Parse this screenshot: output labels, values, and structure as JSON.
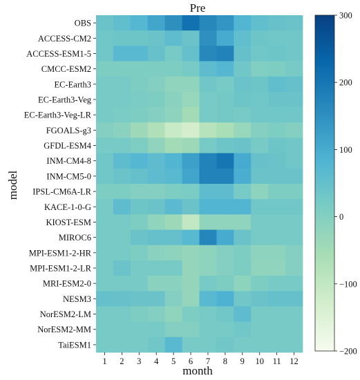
{
  "chart_data": {
    "type": "heatmap",
    "title": "Pre",
    "xlabel": "month",
    "ylabel": "model",
    "x": [
      "1",
      "2",
      "3",
      "4",
      "5",
      "6",
      "7",
      "8",
      "9",
      "10",
      "11",
      "12"
    ],
    "y": [
      "OBS",
      "ACCESS-CM2",
      "ACCESS-ESM1-5",
      "CMCC-ESM2",
      "EC-Earth3",
      "EC-Earth3-Veg",
      "EC-Earth3-Veg-LR",
      "FGOALS-g3",
      "GFDL-ESM4",
      "INM-CM4-8",
      "INM-CM5-0",
      "IPSL-CM6A-LR",
      "KACE-1-0-G",
      "KIOST-ESM",
      "MIROC6",
      "MPI-ESM1-2-HR",
      "MPI-ESM1-2-LR",
      "MRI-ESM2-0",
      "NESM3",
      "NorESM2-LM",
      "NorESM2-MM",
      "TaiESM1"
    ],
    "values": [
      [
        40,
        55,
        75,
        110,
        150,
        210,
        165,
        140,
        80,
        55,
        45,
        40
      ],
      [
        30,
        35,
        35,
        40,
        60,
        40,
        150,
        100,
        55,
        35,
        30,
        30
      ],
      [
        30,
        70,
        70,
        45,
        20,
        50,
        165,
        175,
        50,
        30,
        35,
        30
      ],
      [
        10,
        10,
        10,
        10,
        10,
        20,
        60,
        75,
        30,
        5,
        10,
        20
      ],
      [
        20,
        20,
        10,
        0,
        -20,
        -20,
        30,
        20,
        40,
        35,
        55,
        50
      ],
      [
        20,
        20,
        15,
        10,
        -10,
        -30,
        20,
        25,
        35,
        30,
        40,
        40
      ],
      [
        20,
        15,
        10,
        0,
        -15,
        -50,
        20,
        25,
        20,
        30,
        30,
        30
      ],
      [
        0,
        -10,
        -40,
        -70,
        -110,
        -130,
        -80,
        -60,
        -30,
        0,
        10,
        0
      ],
      [
        20,
        20,
        10,
        -20,
        -50,
        -40,
        20,
        35,
        40,
        20,
        35,
        30
      ],
      [
        30,
        60,
        75,
        60,
        80,
        120,
        175,
        200,
        100,
        45,
        40,
        30
      ],
      [
        30,
        40,
        50,
        60,
        70,
        110,
        175,
        175,
        95,
        40,
        40,
        40
      ],
      [
        10,
        10,
        0,
        0,
        10,
        15,
        60,
        60,
        20,
        -15,
        10,
        10
      ],
      [
        20,
        60,
        35,
        40,
        65,
        40,
        80,
        80,
        80,
        30,
        30,
        30
      ],
      [
        20,
        20,
        10,
        -20,
        -40,
        -100,
        -20,
        -20,
        -20,
        20,
        20,
        20
      ],
      [
        20,
        20,
        40,
        50,
        50,
        70,
        170,
        100,
        40,
        20,
        20,
        20
      ],
      [
        20,
        20,
        10,
        -10,
        -15,
        -25,
        -15,
        0,
        10,
        -15,
        -15,
        0
      ],
      [
        20,
        40,
        20,
        20,
        20,
        -25,
        -15,
        0,
        10,
        -20,
        -20,
        0
      ],
      [
        20,
        20,
        20,
        -10,
        -10,
        -25,
        20,
        10,
        -15,
        10,
        20,
        20
      ],
      [
        50,
        45,
        40,
        40,
        0,
        -25,
        70,
        85,
        30,
        40,
        50,
        50
      ],
      [
        20,
        20,
        10,
        0,
        -20,
        10,
        20,
        30,
        60,
        20,
        20,
        20
      ],
      [
        20,
        20,
        20,
        20,
        0,
        0,
        20,
        20,
        30,
        20,
        20,
        20
      ],
      [
        20,
        20,
        20,
        30,
        70,
        20,
        20,
        30,
        20,
        20,
        20,
        20
      ]
    ],
    "colorbar": {
      "range": [
        -200,
        300
      ],
      "ticks": [
        "300",
        "200",
        "100",
        "0",
        "−100",
        "−200"
      ],
      "tick_values": [
        300,
        200,
        100,
        0,
        -100,
        -200
      ],
      "colormap": "GnBu",
      "stops": [
        "#f7fcf0",
        "#d3eecc",
        "#a8ddb5",
        "#7bccc4",
        "#4eb3d3",
        "#2b8cbe",
        "#0868ac",
        "#084081"
      ]
    },
    "grid": false,
    "legend": "colorbar-right"
  }
}
